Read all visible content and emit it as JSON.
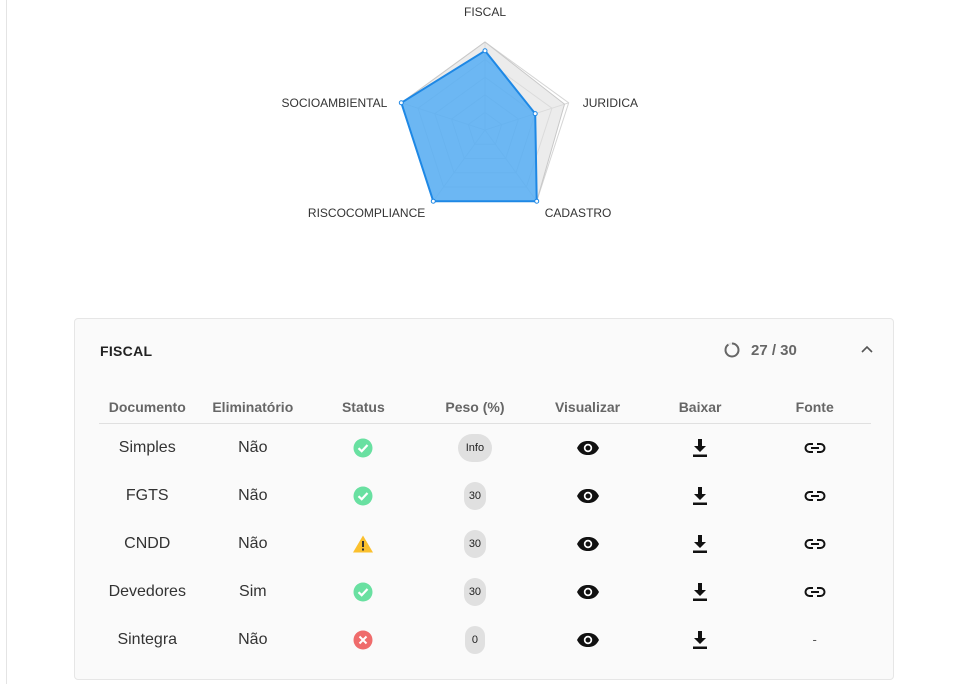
{
  "radar": {
    "axes": [
      "FISCAL",
      "JURIDICA",
      "CADASTRO",
      "RISCOCOMPLIANCE",
      "SOCIOAMBIENTAL"
    ],
    "series": [
      {
        "values": [
          0.9,
          0.6,
          1.0,
          1.0,
          1.0
        ],
        "color": "#42a5f5"
      },
      {
        "values": [
          1.0,
          0.95,
          1.0,
          1.0,
          1.0
        ],
        "color": "#e0e0e0"
      }
    ]
  },
  "section": {
    "title": "FISCAL",
    "progress_text": "27 / 30",
    "progress_value": 0.9
  },
  "table": {
    "headers": [
      "Documento",
      "Eliminatório",
      "Status",
      "Peso (%)",
      "Visualizar",
      "Baixar",
      "Fonte"
    ],
    "rows": [
      {
        "documento": "Simples",
        "eliminatorio": "Não",
        "status": "ok",
        "peso": "Info",
        "fonte": "link"
      },
      {
        "documento": "FGTS",
        "eliminatorio": "Não",
        "status": "ok",
        "peso": "30",
        "fonte": "link"
      },
      {
        "documento": "CNDD",
        "eliminatorio": "Não",
        "status": "warning",
        "peso": "30",
        "fonte": "link"
      },
      {
        "documento": "Devedores",
        "eliminatorio": "Sim",
        "status": "ok",
        "peso": "30",
        "fonte": "link"
      },
      {
        "documento": "Sintegra",
        "eliminatorio": "Não",
        "status": "error",
        "peso": "0",
        "fonte": "-"
      }
    ]
  },
  "colors": {
    "ok": "#69e0a1",
    "warning": "#fbc02d",
    "error": "#ef6c6c",
    "accent": "#42a5f5"
  },
  "icons": {
    "status_ok": "check-circle-icon",
    "status_warning": "warning-icon",
    "status_error": "close-circle-icon",
    "visualizar": "eye-icon",
    "baixar": "download-icon",
    "fonte": "link-icon",
    "collapse": "chevron-up-icon",
    "progress": "progress-ring-icon"
  }
}
